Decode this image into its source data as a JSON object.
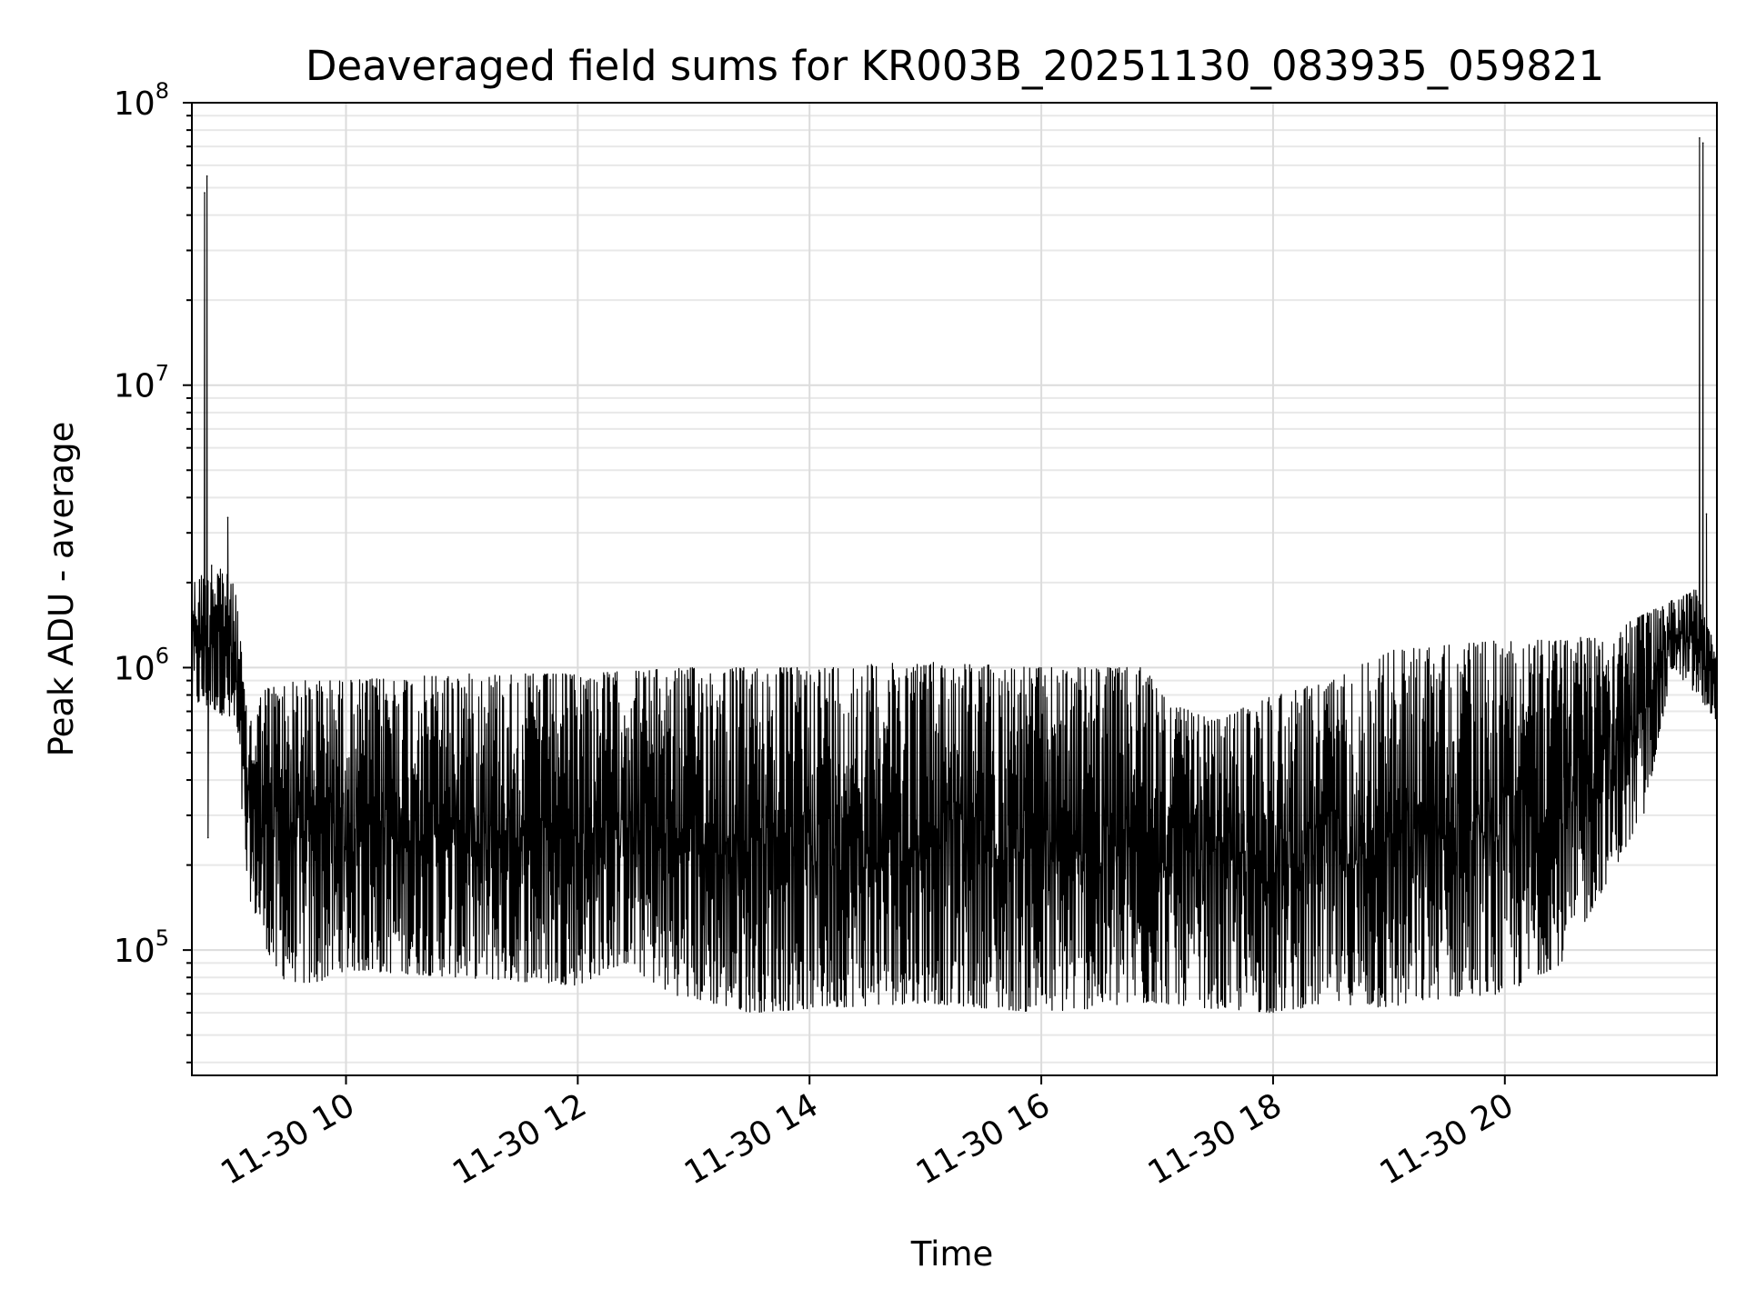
{
  "chart_data": {
    "type": "line",
    "title": "Deaveraged field sums for KR003B_20251130_083935_059821",
    "xlabel": "Time",
    "ylabel": "Peak ADU - average",
    "yscale": "log",
    "ylim": [
      36000,
      100000000
    ],
    "xlim_hours": [
      8.67,
      21.83
    ],
    "grid": true,
    "x_ticks": [
      {
        "value": 10,
        "label": "11-30 10"
      },
      {
        "value": 12,
        "label": "11-30 12"
      },
      {
        "value": 14,
        "label": "11-30 14"
      },
      {
        "value": 16,
        "label": "11-30 16"
      },
      {
        "value": 18,
        "label": "11-30 18"
      },
      {
        "value": 20,
        "label": "11-30 20"
      }
    ],
    "y_ticks": [
      {
        "value": 100000,
        "base": "10",
        "exp": "5"
      },
      {
        "value": 1000000,
        "base": "10",
        "exp": "6"
      },
      {
        "value": 10000000,
        "base": "10",
        "exp": "7"
      },
      {
        "value": 100000000,
        "base": "10",
        "exp": "8"
      }
    ],
    "series": [
      {
        "name": "Peak ADU - average",
        "color": "#000000",
        "points": [
          [
            8.67,
            1900000
          ],
          [
            8.72,
            1300000
          ],
          [
            8.76,
            1500000
          ],
          [
            8.78,
            48000000
          ],
          [
            8.8,
            55000000
          ],
          [
            8.81,
            250000
          ],
          [
            8.84,
            2300000
          ],
          [
            8.88,
            900000
          ],
          [
            8.93,
            700000
          ],
          [
            8.98,
            3400000
          ],
          [
            9.03,
            1100000
          ],
          [
            9.08,
            600000
          ],
          [
            9.13,
            300000
          ],
          [
            9.18,
            180000
          ],
          [
            9.25,
            160000
          ],
          [
            9.35,
            150000
          ],
          [
            9.5,
            140000
          ],
          [
            9.75,
            160000
          ],
          [
            10.0,
            230000
          ],
          [
            10.5,
            290000
          ],
          [
            11.0,
            320000
          ],
          [
            11.5,
            360000
          ],
          [
            12.0,
            400000
          ],
          [
            12.4,
            480000
          ],
          [
            12.75,
            420000
          ],
          [
            13.25,
            380000
          ],
          [
            13.75,
            300000
          ],
          [
            14.25,
            360000
          ],
          [
            14.75,
            420000
          ],
          [
            15.25,
            450000
          ],
          [
            15.75,
            420000
          ],
          [
            16.25,
            400000
          ],
          [
            16.75,
            380000
          ],
          [
            17.1,
            320000
          ],
          [
            17.4,
            150000
          ],
          [
            17.8,
            100000
          ],
          [
            18.2,
            95000
          ],
          [
            18.6,
            100000
          ],
          [
            19.0,
            110000
          ],
          [
            19.5,
            120000
          ],
          [
            20.0,
            130000
          ],
          [
            20.5,
            160000
          ],
          [
            20.8,
            350000
          ],
          [
            21.0,
            600000
          ],
          [
            21.25,
            800000
          ],
          [
            21.45,
            1400000
          ],
          [
            21.55,
            1300000
          ],
          [
            21.65,
            1500000
          ],
          [
            21.68,
            75000000
          ],
          [
            21.71,
            72000000
          ],
          [
            21.74,
            3500000
          ],
          [
            21.78,
            1300000
          ],
          [
            21.83,
            700000
          ]
        ],
        "envelope_upper": [
          [
            8.67,
            2000000
          ],
          [
            8.9,
            2400000
          ],
          [
            9.05,
            1900000
          ],
          [
            9.15,
            650000
          ],
          [
            9.3,
            850000
          ],
          [
            9.6,
            900000
          ],
          [
            10.0,
            900000
          ],
          [
            11.0,
            950000
          ],
          [
            12.0,
            950000
          ],
          [
            13.0,
            1000000
          ],
          [
            14.0,
            1000000
          ],
          [
            15.0,
            1050000
          ],
          [
            16.0,
            1000000
          ],
          [
            16.9,
            1000000
          ],
          [
            17.1,
            750000
          ],
          [
            17.5,
            650000
          ],
          [
            18.0,
            800000
          ],
          [
            18.5,
            900000
          ],
          [
            19.0,
            1150000
          ],
          [
            19.5,
            1200000
          ],
          [
            20.0,
            1250000
          ],
          [
            20.5,
            1250000
          ],
          [
            21.0,
            1400000
          ],
          [
            21.4,
            1700000
          ],
          [
            21.65,
            1900000
          ],
          [
            21.83,
            1100000
          ]
        ],
        "envelope_lower": [
          [
            8.67,
            750000
          ],
          [
            8.9,
            700000
          ],
          [
            9.05,
            600000
          ],
          [
            9.15,
            160000
          ],
          [
            9.4,
            80000
          ],
          [
            9.7,
            75000
          ],
          [
            10.0,
            85000
          ],
          [
            11.0,
            80000
          ],
          [
            12.0,
            75000
          ],
          [
            12.4,
            90000
          ],
          [
            12.8,
            70000
          ],
          [
            13.5,
            60000
          ],
          [
            14.0,
            62000
          ],
          [
            15.0,
            65000
          ],
          [
            16.0,
            60000
          ],
          [
            17.0,
            65000
          ],
          [
            17.5,
            62000
          ],
          [
            18.0,
            60000
          ],
          [
            18.5,
            65000
          ],
          [
            19.0,
            62000
          ],
          [
            19.5,
            68000
          ],
          [
            20.0,
            70000
          ],
          [
            20.5,
            90000
          ],
          [
            20.9,
            180000
          ],
          [
            21.2,
            300000
          ],
          [
            21.45,
            1000000
          ],
          [
            21.83,
            650000
          ]
        ]
      }
    ]
  }
}
